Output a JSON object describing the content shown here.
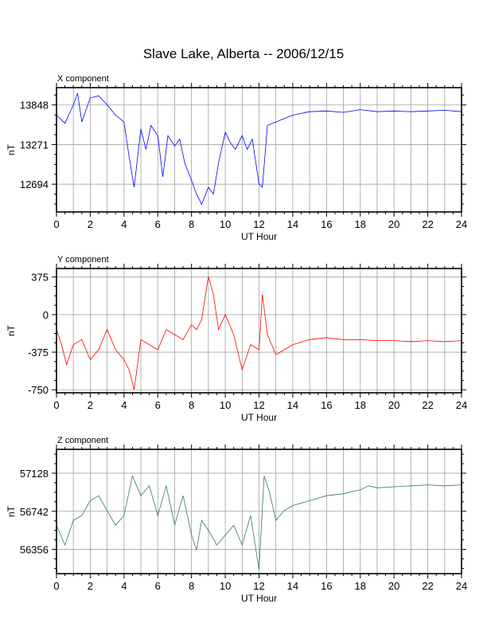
{
  "title": "Slave Lake, Alberta -- 2006/12/15",
  "chart_data": [
    {
      "type": "line",
      "panel_title": "X component",
      "xlabel": "UT Hour",
      "ylabel": "nT",
      "xlim": [
        0,
        24
      ],
      "ylim": [
        12290,
        14100
      ],
      "x_ticks": [
        0,
        2,
        4,
        6,
        8,
        10,
        12,
        14,
        16,
        18,
        20,
        22,
        24
      ],
      "y_ticks": [
        13848,
        13271,
        12694
      ],
      "grid": true,
      "color": "#0000ff",
      "x": [
        0,
        0.5,
        1,
        1.25,
        1.5,
        2,
        2.5,
        3,
        3.5,
        4,
        4.3,
        4.6,
        5,
        5.3,
        5.6,
        6,
        6.3,
        6.6,
        7,
        7.3,
        7.6,
        8,
        8.3,
        8.6,
        9,
        9.3,
        9.6,
        10,
        10.3,
        10.6,
        11,
        11.3,
        11.6,
        12,
        12.2,
        12.5,
        13,
        13.5,
        14,
        15,
        16,
        17,
        18,
        19,
        20,
        21,
        22,
        23,
        24
      ],
      "y": [
        13700,
        13580,
        13850,
        14020,
        13600,
        13950,
        13980,
        13850,
        13700,
        13600,
        13100,
        12650,
        13500,
        13200,
        13550,
        13400,
        12800,
        13400,
        13250,
        13350,
        13000,
        12750,
        12550,
        12400,
        12650,
        12550,
        13000,
        13450,
        13300,
        13200,
        13400,
        13200,
        13350,
        12700,
        12650,
        13550,
        13600,
        13650,
        13700,
        13750,
        13760,
        13740,
        13780,
        13750,
        13760,
        13750,
        13760,
        13770,
        13750
      ]
    },
    {
      "type": "line",
      "panel_title": "Y component",
      "xlabel": "UT Hour",
      "ylabel": "nT",
      "xlim": [
        0,
        24
      ],
      "ylim": [
        -780,
        460
      ],
      "x_ticks": [
        0,
        2,
        4,
        6,
        8,
        10,
        12,
        14,
        16,
        18,
        20,
        22,
        24
      ],
      "y_ticks": [
        375,
        0,
        -375,
        -750
      ],
      "grid": true,
      "color": "#ff0000",
      "x": [
        0,
        0.3,
        0.6,
        1,
        1.5,
        2,
        2.5,
        3,
        3.5,
        4,
        4.3,
        4.6,
        5,
        5.5,
        6,
        6.5,
        7,
        7.5,
        8,
        8.3,
        8.6,
        9,
        9.3,
        9.6,
        10,
        10.5,
        11,
        11.5,
        12,
        12.2,
        12.5,
        13,
        13.5,
        14,
        15,
        16,
        17,
        18,
        19,
        20,
        21,
        22,
        23,
        24
      ],
      "y": [
        -150,
        -300,
        -500,
        -300,
        -250,
        -450,
        -350,
        -150,
        -350,
        -450,
        -550,
        -750,
        -250,
        -300,
        -350,
        -150,
        -200,
        -250,
        -100,
        -150,
        -50,
        380,
        200,
        -150,
        0,
        -200,
        -550,
        -300,
        -350,
        200,
        -200,
        -400,
        -350,
        -300,
        -250,
        -230,
        -250,
        -250,
        -260,
        -260,
        -270,
        -260,
        -270,
        -260
      ]
    },
    {
      "type": "line",
      "panel_title": "Z component",
      "xlabel": "UT Hour",
      "ylabel": "nT",
      "xlim": [
        0,
        24
      ],
      "ylim": [
        56110,
        57370
      ],
      "x_ticks": [
        0,
        2,
        4,
        6,
        8,
        10,
        12,
        14,
        16,
        18,
        20,
        22,
        24
      ],
      "y_ticks": [
        57128,
        56742,
        56356
      ],
      "grid": true,
      "color": "#2e7d4f",
      "x": [
        0,
        0.5,
        1,
        1.5,
        2,
        2.5,
        3,
        3.5,
        4,
        4.5,
        5,
        5.5,
        6,
        6.5,
        7,
        7.5,
        8,
        8.3,
        8.6,
        9,
        9.5,
        10,
        10.5,
        11,
        11.5,
        12,
        12.3,
        12.6,
        13,
        13.5,
        14,
        15,
        16,
        17,
        18,
        18.5,
        19,
        20,
        21,
        22,
        23,
        24
      ],
      "y": [
        56600,
        56400,
        56650,
        56700,
        56850,
        56900,
        56750,
        56600,
        56700,
        57100,
        56900,
        57000,
        56700,
        57000,
        56600,
        56900,
        56500,
        56350,
        56650,
        56550,
        56400,
        56500,
        56600,
        56400,
        56700,
        56150,
        57100,
        56950,
        56650,
        56750,
        56800,
        56850,
        56900,
        56920,
        56960,
        57000,
        56980,
        56990,
        57000,
        57010,
        57000,
        57010
      ]
    }
  ]
}
